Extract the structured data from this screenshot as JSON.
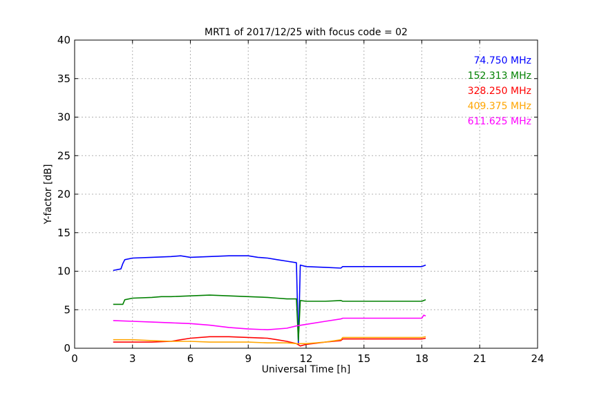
{
  "chart_data": {
    "type": "line",
    "title": "MRT1 of 2017/12/25 with focus code = 02",
    "xlabel": "Universal Time [h]",
    "ylabel": "Y-factor [dB]",
    "xlim": [
      0,
      24
    ],
    "ylim": [
      0,
      40
    ],
    "xticks": [
      0,
      3,
      6,
      9,
      12,
      15,
      18,
      21,
      24
    ],
    "yticks": [
      0,
      5,
      10,
      15,
      20,
      25,
      30,
      35,
      40
    ],
    "grid": true,
    "legend_position": "top-right",
    "series": [
      {
        "name": "74.750 MHz",
        "color": "#0000ff",
        "x": [
          2.0,
          2.4,
          2.5,
          2.6,
          3.0,
          4.0,
          5.0,
          5.5,
          6.0,
          7.0,
          8.0,
          9.0,
          9.5,
          10.0,
          10.5,
          11.0,
          11.5,
          11.6,
          11.7,
          12.0,
          13.0,
          13.8,
          13.9,
          18.0,
          18.2
        ],
        "y": [
          10.1,
          10.3,
          11.0,
          11.5,
          11.7,
          11.8,
          11.9,
          12.0,
          11.8,
          11.9,
          12.0,
          12.0,
          11.8,
          11.7,
          11.5,
          11.3,
          11.1,
          0.5,
          10.8,
          10.6,
          10.5,
          10.4,
          10.6,
          10.6,
          10.8
        ]
      },
      {
        "name": "152.313 MHz",
        "color": "#008000",
        "x": [
          2.0,
          2.5,
          2.6,
          3.0,
          4.0,
          4.5,
          5.0,
          6.0,
          7.0,
          8.0,
          9.0,
          10.0,
          10.5,
          11.0,
          11.5,
          11.6,
          11.7,
          12.0,
          13.0,
          13.8,
          13.9,
          18.0,
          18.2
        ],
        "y": [
          5.7,
          5.7,
          6.3,
          6.5,
          6.6,
          6.7,
          6.7,
          6.8,
          6.9,
          6.8,
          6.7,
          6.6,
          6.5,
          6.4,
          6.4,
          1.0,
          6.2,
          6.1,
          6.1,
          6.2,
          6.1,
          6.1,
          6.3
        ]
      },
      {
        "name": "328.250 MHz",
        "color": "#ff0000",
        "x": [
          2.0,
          3.0,
          4.0,
          5.0,
          5.5,
          6.0,
          7.0,
          8.0,
          9.0,
          10.0,
          10.5,
          11.0,
          11.5,
          11.7,
          12.0,
          13.0,
          13.8,
          13.9,
          18.0,
          18.2
        ],
        "y": [
          0.8,
          0.8,
          0.8,
          0.9,
          1.1,
          1.3,
          1.5,
          1.5,
          1.4,
          1.3,
          1.1,
          0.9,
          0.6,
          0.3,
          0.5,
          0.8,
          1.0,
          1.2,
          1.2,
          1.3
        ]
      },
      {
        "name": "409.375 MHz",
        "color": "#ffa500",
        "x": [
          2.0,
          3.0,
          4.0,
          5.0,
          6.0,
          7.0,
          8.0,
          9.0,
          10.0,
          11.0,
          11.5,
          12.0,
          13.0,
          13.8,
          13.9,
          18.0,
          18.2
        ],
        "y": [
          1.1,
          1.1,
          1.0,
          0.9,
          0.9,
          0.8,
          0.8,
          0.8,
          0.7,
          0.7,
          0.6,
          0.6,
          0.8,
          1.1,
          1.4,
          1.4,
          1.5
        ]
      },
      {
        "name": "611.625 MHz",
        "color": "#ff00ff",
        "x": [
          2.0,
          3.0,
          4.0,
          5.0,
          6.0,
          7.0,
          8.0,
          9.0,
          10.0,
          11.0,
          11.5,
          12.0,
          13.0,
          13.8,
          13.9,
          18.0,
          18.1,
          18.2
        ],
        "y": [
          3.6,
          3.5,
          3.4,
          3.3,
          3.2,
          3.0,
          2.7,
          2.5,
          2.4,
          2.6,
          2.9,
          3.1,
          3.5,
          3.8,
          3.9,
          3.9,
          4.3,
          4.2
        ]
      }
    ]
  }
}
